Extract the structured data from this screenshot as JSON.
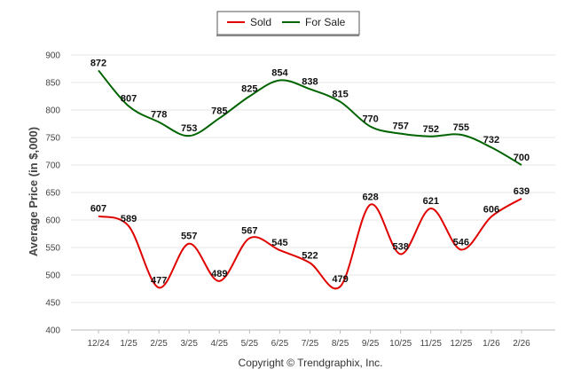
{
  "chart_data": {
    "type": "line",
    "title": "",
    "xlabel": "",
    "ylabel": "Average Price (in $,000)",
    "ylim": [
      400,
      900
    ],
    "yticks": [
      400,
      450,
      500,
      550,
      600,
      650,
      700,
      750,
      800,
      850,
      900
    ],
    "categories": [
      "12/24",
      "1/25",
      "2/25",
      "3/25",
      "4/25",
      "5/25",
      "6/25",
      "7/25",
      "8/25",
      "9/25",
      "10/25",
      "11/25",
      "12/25",
      "1/26",
      "2/26"
    ],
    "series": [
      {
        "name": "Sold",
        "color": "#e00000",
        "values": [
          607,
          589,
          477,
          557,
          489,
          567,
          545,
          522,
          479,
          628,
          538,
          621,
          546,
          606,
          639
        ]
      },
      {
        "name": "For Sale",
        "color": "#006400",
        "values": [
          872,
          807,
          778,
          753,
          785,
          825,
          854,
          838,
          815,
          770,
          757,
          752,
          755,
          732,
          700
        ]
      }
    ],
    "legend_position": "top-center",
    "grid": true,
    "footer": "Copyright © Trendgraphix, Inc."
  }
}
